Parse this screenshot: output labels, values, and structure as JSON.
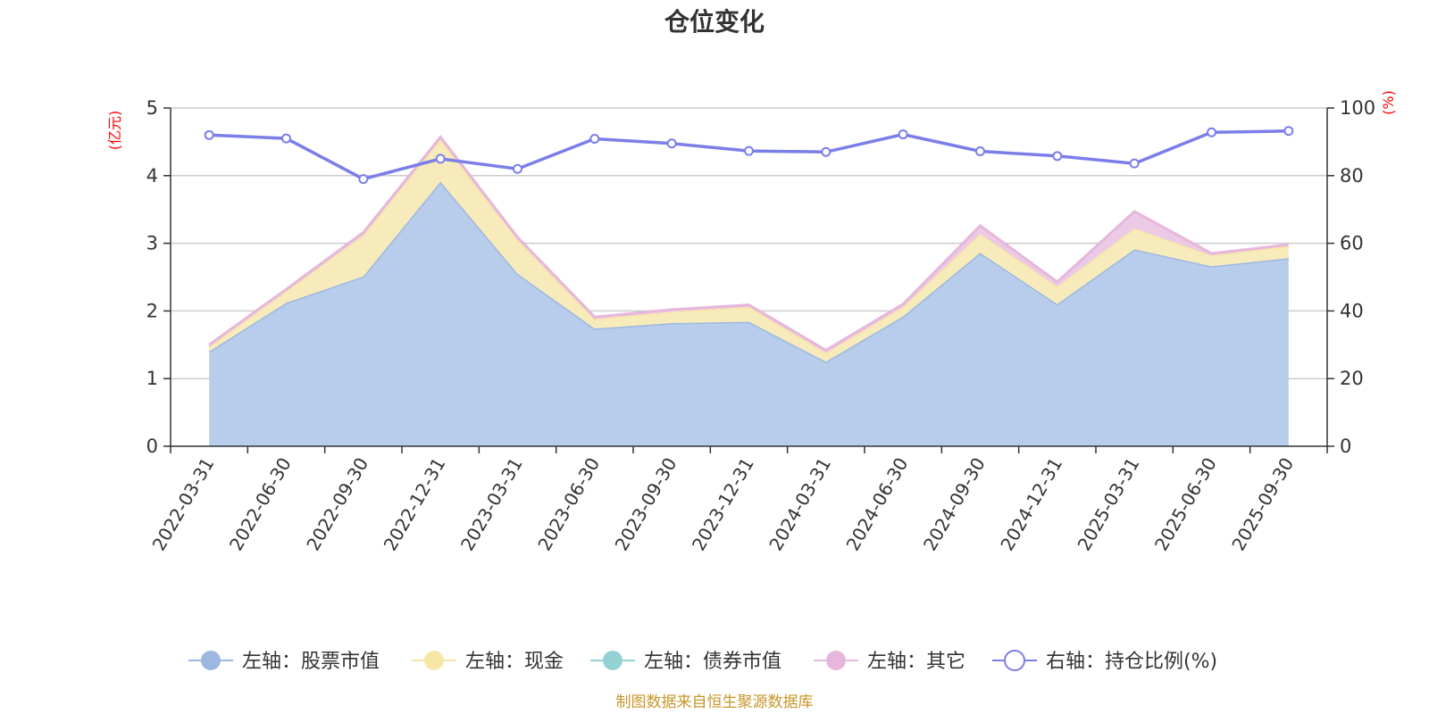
{
  "chart_data": {
    "type": "area",
    "title": "仓位变化",
    "categories": [
      "2022-03-31",
      "2022-06-30",
      "2022-09-30",
      "2022-12-31",
      "2023-03-31",
      "2023-06-30",
      "2023-09-30",
      "2023-12-31",
      "2024-03-31",
      "2024-06-30",
      "2024-09-30",
      "2024-12-31",
      "2025-03-31",
      "2025-06-30",
      "2025-09-30"
    ],
    "y_left": {
      "unit": "(亿元)",
      "range": [
        0,
        5
      ],
      "ticks": [
        "0",
        "1",
        "2",
        "3",
        "4",
        "5"
      ]
    },
    "y_right": {
      "unit": "(%)",
      "range": [
        0,
        100
      ],
      "ticks": [
        "0",
        "20",
        "40",
        "60",
        "80",
        "100"
      ]
    },
    "grid": true,
    "legend_position": "bottom",
    "series": [
      {
        "name": "左轴：股票市值",
        "axis": "left",
        "stacked": true,
        "color": "#9db8e0",
        "fill": "#b8cceb",
        "values": [
          1.4,
          2.12,
          2.51,
          3.91,
          2.55,
          1.74,
          1.82,
          1.84,
          1.25,
          1.92,
          2.86,
          2.1,
          2.91,
          2.66,
          2.78
        ]
      },
      {
        "name": "左轴：现金",
        "axis": "left",
        "stacked": true,
        "color": "#f7e7a7",
        "fill": "#f8ebbb",
        "values": [
          0.07,
          0.17,
          0.61,
          0.62,
          0.5,
          0.14,
          0.17,
          0.22,
          0.13,
          0.14,
          0.28,
          0.26,
          0.31,
          0.16,
          0.18
        ]
      },
      {
        "name": "左轴：债券市值",
        "axis": "left",
        "stacked": true,
        "color": "#93d1d2",
        "fill": "#93d1d2",
        "values": [
          0,
          0,
          0,
          0,
          0,
          0,
          0,
          0,
          0,
          0,
          0,
          0,
          0,
          0,
          0
        ]
      },
      {
        "name": "左轴：其它",
        "axis": "left",
        "stacked": true,
        "color": "#e6b7db",
        "fill": "#ecc9e4",
        "values": [
          0.03,
          0.03,
          0.04,
          0.04,
          0.04,
          0.03,
          0.03,
          0.03,
          0.04,
          0.04,
          0.12,
          0.07,
          0.25,
          0.03,
          0.02
        ]
      },
      {
        "name": "右轴：持仓比例(%)",
        "axis": "right",
        "type": "line",
        "color": "#7b7ee8",
        "values": [
          92.0,
          91.0,
          79.0,
          85.0,
          82.0,
          90.9,
          89.5,
          87.3,
          87.0,
          92.2,
          87.2,
          85.8,
          83.6,
          92.8,
          93.2
        ]
      }
    ]
  },
  "source_note": "制图数据来自恒生聚源数据库"
}
